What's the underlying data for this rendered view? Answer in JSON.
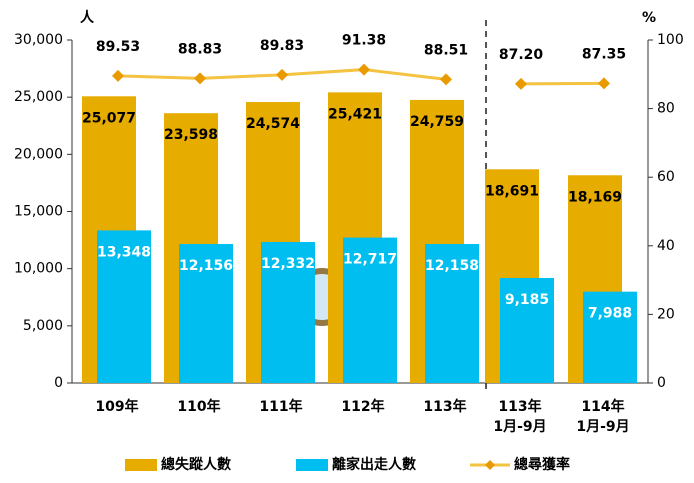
{
  "chart_data": {
    "type": "bar-line",
    "y_unit": "人",
    "y2_unit": "%",
    "categories": [
      "109年",
      "110年",
      "111年",
      "112年",
      "113年",
      "113年\n1月-9月",
      "114年\n1月-9月"
    ],
    "ylim": [
      0,
      30000
    ],
    "yticks": [
      0,
      {
        "value": 5000,
        "label": "5,000"
      },
      {
        "value": 10000,
        "label": "10,000"
      },
      {
        "value": 15000,
        "label": "15,000"
      },
      {
        "value": 20000,
        "label": "20,000"
      },
      {
        "value": 25000,
        "label": "25,000"
      },
      {
        "value": 30000,
        "label": "30,000"
      }
    ],
    "y2lim": [
      0,
      100
    ],
    "y2ticks": [
      0,
      20,
      40,
      60,
      80,
      100
    ],
    "series": [
      {
        "name": "總失蹤人數",
        "color": "#E6AC00",
        "kind": "bar",
        "values": [
          25077,
          23598,
          24574,
          25421,
          24759,
          18691,
          18169
        ],
        "value_labels": [
          "25,077",
          "23,598",
          "24,574",
          "25,421",
          "24,759",
          "18,691",
          "18,169"
        ]
      },
      {
        "name": "離家出走人數",
        "color": "#00BFF0",
        "kind": "bar",
        "values": [
          13348,
          12156,
          12332,
          12717,
          12158,
          9185,
          7988
        ],
        "value_labels": [
          "13,348",
          "12,156",
          "12,332",
          "12,717",
          "12,158",
          "9,185",
          "7,988"
        ]
      },
      {
        "name": "總尋獲率",
        "color": "#F5C342",
        "kind": "line",
        "axis": "y2",
        "values": [
          89.53,
          88.83,
          89.83,
          91.38,
          88.51,
          87.2,
          87.35
        ],
        "value_labels": [
          "89.53",
          "88.83",
          "89.83",
          "91.38",
          "88.51",
          "87.20",
          "87.35"
        ]
      }
    ]
  }
}
